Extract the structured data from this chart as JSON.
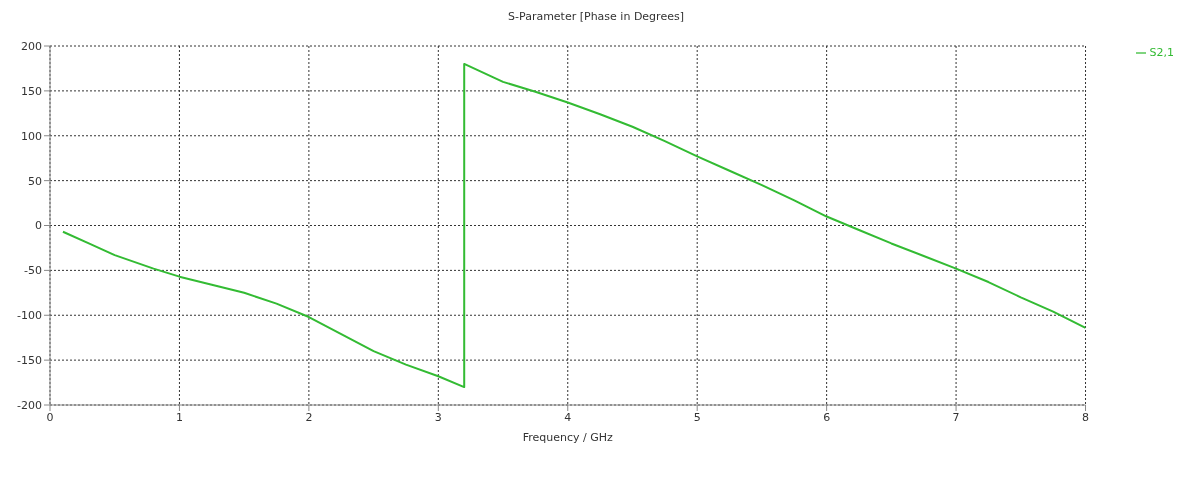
{
  "chart_data": {
    "type": "line",
    "title": "S-Parameter [Phase in Degrees]",
    "xlabel": "Frequency / GHz",
    "x": [
      0.1,
      0.3,
      0.5,
      0.8,
      1,
      1.25,
      1.5,
      1.75,
      2,
      2.25,
      2.5,
      2.75,
      3,
      3.2,
      3.2,
      3.5,
      3.75,
      4,
      4.25,
      4.5,
      4.75,
      5,
      5.25,
      5.5,
      5.75,
      6,
      6.25,
      6.5,
      6.75,
      7,
      7.25,
      7.5,
      7.75,
      8
    ],
    "series": [
      {
        "name": "S2,1",
        "color": "#33bb33",
        "values": [
          -7,
          -20,
          -33,
          -48,
          -57,
          -66,
          -75,
          -87,
          -102,
          -121,
          -140,
          -155,
          -168,
          -180,
          180,
          160,
          149,
          137,
          124,
          110,
          94,
          77,
          61,
          45,
          28,
          10,
          -5,
          -20,
          -34,
          -48,
          -63,
          -80,
          -96,
          -114
        ]
      }
    ],
    "xlim": [
      0,
      8
    ],
    "xticks": [
      0,
      1,
      2,
      3,
      4,
      5,
      6,
      7,
      8
    ],
    "ylim": [
      -200,
      200
    ],
    "yticks": [
      -200,
      -150,
      -100,
      -50,
      0,
      50,
      100,
      150,
      200
    ],
    "grid": true,
    "legend": "top right",
    "marker": "none",
    "line_style": "solid"
  }
}
